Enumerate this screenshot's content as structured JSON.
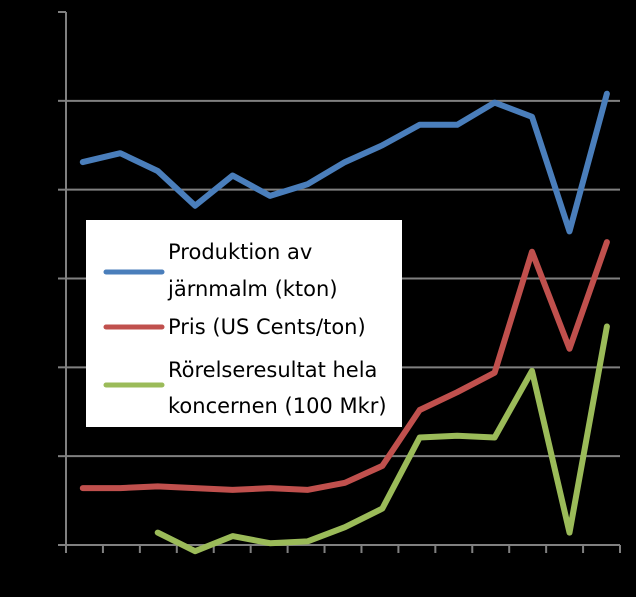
{
  "chart_data": {
    "type": "line",
    "title": "",
    "xlabel": "",
    "ylabel": "",
    "x": [
      1,
      2,
      3,
      4,
      5,
      6,
      7,
      8,
      9,
      10,
      11,
      12,
      13,
      14,
      15
    ],
    "ylim": [
      0,
      60
    ],
    "y_gridlines": [
      10,
      20,
      30,
      40,
      50
    ],
    "grid": true,
    "legend_position": "center-left",
    "background": "#000000",
    "axis_color": "#808080",
    "series": [
      {
        "name": "Produktion av järnmalm (kton)",
        "color": "#4a7ebb",
        "values": [
          [
            1,
            43.1
          ],
          [
            2,
            44.1
          ],
          [
            3,
            42.1
          ],
          [
            4,
            38.2
          ],
          [
            5,
            41.6
          ],
          [
            6,
            39.3
          ],
          [
            7,
            40.6
          ],
          [
            8,
            43.1
          ],
          [
            9,
            45.0
          ],
          [
            10,
            47.3
          ],
          [
            11,
            47.3
          ],
          [
            12,
            49.8
          ],
          [
            13,
            48.2
          ],
          [
            14,
            35.3
          ],
          [
            15,
            50.8
          ]
        ]
      },
      {
        "name": "Pris (US Cents/ton)",
        "color": "#c0504d",
        "values": [
          [
            1,
            6.4
          ],
          [
            2,
            6.4
          ],
          [
            3,
            6.6
          ],
          [
            4,
            6.4
          ],
          [
            5,
            6.2
          ],
          [
            6,
            6.4
          ],
          [
            7,
            6.2
          ],
          [
            8,
            7.0
          ],
          [
            9,
            8.9
          ],
          [
            10,
            15.2
          ],
          [
            11,
            17.2
          ],
          [
            12,
            19.4
          ],
          [
            13,
            33.0
          ],
          [
            14,
            22.1
          ],
          [
            15,
            34.1
          ]
        ]
      },
      {
        "name": "Rörelseresultat hela koncernen (100 Mkr)",
        "color": "#9bbb59",
        "values": [
          [
            3,
            1.4
          ],
          [
            4,
            -0.7
          ],
          [
            5,
            1.0
          ],
          [
            6,
            0.2
          ],
          [
            7,
            0.4
          ],
          [
            8,
            2.0
          ],
          [
            9,
            4.1
          ],
          [
            10,
            12.1
          ],
          [
            11,
            12.3
          ],
          [
            12,
            12.1
          ],
          [
            13,
            19.6
          ],
          [
            14,
            1.4
          ],
          [
            15,
            24.6
          ]
        ]
      }
    ]
  }
}
